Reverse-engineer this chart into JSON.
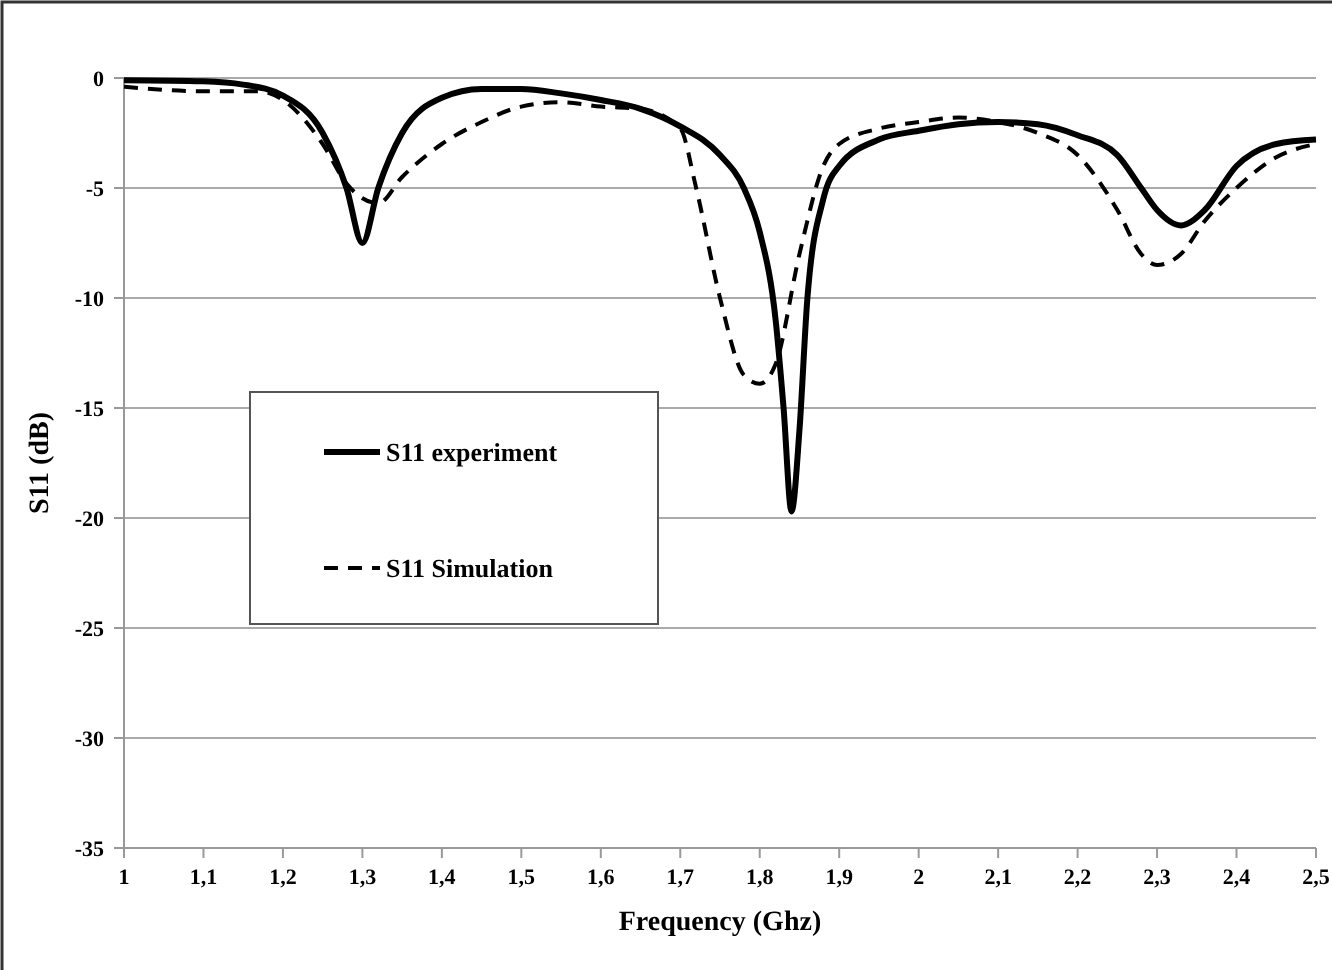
{
  "chart_data": {
    "type": "line",
    "xlabel": "Frequency (Ghz)",
    "ylabel": "S11 (dB)",
    "xlim": [
      1,
      2.5
    ],
    "xticks": [
      {
        "value": 1,
        "label": "1"
      },
      {
        "value": 1.1,
        "label": "1,1"
      },
      {
        "value": 1.2,
        "label": "1,2"
      },
      {
        "value": 1.3,
        "label": "1,3"
      },
      {
        "value": 1.4,
        "label": "1,4"
      },
      {
        "value": 1.5,
        "label": "1,5"
      },
      {
        "value": 1.6,
        "label": "1,6"
      },
      {
        "value": 1.7,
        "label": "1,7"
      },
      {
        "value": 1.8,
        "label": "1,8"
      },
      {
        "value": 1.9,
        "label": "1,9"
      },
      {
        "value": 2,
        "label": "2"
      },
      {
        "value": 2.1,
        "label": "2,1"
      },
      {
        "value": 2.2,
        "label": "2,2"
      },
      {
        "value": 2.3,
        "label": "2,3"
      },
      {
        "value": 2.4,
        "label": "2,4"
      },
      {
        "value": 2.5,
        "label": "2,5"
      }
    ],
    "ylim": [
      -35,
      0
    ],
    "yticks": [
      0,
      -5,
      -10,
      -15,
      -20,
      -25,
      -30,
      -35
    ],
    "grid": "y",
    "legend": "left",
    "marker": "none",
    "series": [
      {
        "name": "S11 experiment",
        "color": "#000000",
        "line_style": "solid",
        "x": [
          1,
          1.1,
          1.15,
          1.2,
          1.25,
          1.28,
          1.3,
          1.32,
          1.35,
          1.4,
          1.45,
          1.5,
          1.55,
          1.6,
          1.65,
          1.7,
          1.75,
          1.78,
          1.8,
          1.82,
          1.83,
          1.84,
          1.85,
          1.86,
          1.88,
          1.9,
          1.95,
          2,
          2.05,
          2.1,
          2.15,
          2.2,
          2.25,
          2.28,
          2.3,
          2.33,
          2.36,
          2.4,
          2.45,
          2.5
        ],
        "values": [
          -0.1,
          -0.15,
          -0.3,
          -0.8,
          -2.5,
          -5,
          -7.5,
          -5,
          -2.5,
          -0.9,
          -0.5,
          -0.5,
          -0.7,
          -1,
          -1.4,
          -2.2,
          -3.5,
          -5,
          -7,
          -11,
          -15,
          -19.7,
          -16,
          -10,
          -5.5,
          -4,
          -2.8,
          -2.4,
          -2.1,
          -2,
          -2.1,
          -2.6,
          -3.5,
          -5,
          -6,
          -6.7,
          -6,
          -4,
          -3,
          -2.8
        ]
      },
      {
        "name": "S11 Simulation",
        "color": "#000000",
        "line_style": "dashed",
        "x": [
          1,
          1.1,
          1.17,
          1.2,
          1.25,
          1.28,
          1.32,
          1.35,
          1.4,
          1.45,
          1.5,
          1.55,
          1.6,
          1.65,
          1.7,
          1.72,
          1.75,
          1.78,
          1.8,
          1.82,
          1.85,
          1.88,
          1.9,
          1.95,
          2,
          2.05,
          2.1,
          2.15,
          2.2,
          2.25,
          2.28,
          2.3,
          2.33,
          2.36,
          2.4,
          2.45,
          2.5
        ],
        "values": [
          -0.4,
          -0.6,
          -0.6,
          -1,
          -3,
          -4.8,
          -5.7,
          -4.5,
          -3,
          -2,
          -1.3,
          -1.1,
          -1.3,
          -1.4,
          -2.3,
          -5,
          -10,
          -13.5,
          -13.9,
          -13,
          -8,
          -4,
          -3,
          -2.3,
          -2,
          -1.8,
          -2,
          -2.5,
          -3.5,
          -6,
          -8,
          -8.5,
          -8,
          -6.5,
          -5,
          -3.6,
          -3
        ]
      }
    ]
  }
}
